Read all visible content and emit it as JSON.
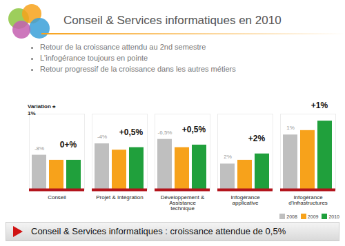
{
  "chart_data": {
    "type": "bar",
    "title": "Conseil & Services informatiques en 2010",
    "bullets": [
      "Retour de la croissance attendu au 2nd semestre",
      "L'infogérance toujours en pointe",
      "Retour progressif de la croissance dans les autres métiers"
    ],
    "y_label": "Variation ± 1%",
    "categories": [
      "Conseil",
      "Projet & Intégration",
      "Développement & Assistance technique",
      "Infogérance applicative",
      "Infogérance d'infrastructures"
    ],
    "series": [
      {
        "name": "2008",
        "color": "#bfbfbf",
        "values": [
          55,
          73,
          80,
          41,
          87
        ]
      },
      {
        "name": "2009",
        "color": "#f7a21b",
        "values": [
          47,
          63,
          67,
          47,
          94
        ]
      },
      {
        "name": "2010",
        "color": "#20a03c",
        "values": [
          47,
          67,
          71,
          57,
          109
        ]
      }
    ],
    "change_labels": [
      "-8%",
      "-4%",
      "-6,5%",
      "2%",
      "1%"
    ],
    "growth_labels": [
      "0+%",
      "+0,5%",
      "+0,5%",
      "+2%",
      "+1%"
    ],
    "footer": "Conseil & Services informatiques : croissance attendue de 0,5%",
    "ylim": [
      0,
      120
    ],
    "yticks": [],
    "grid": false,
    "tick_labels": "x",
    "legend": "bottom-right"
  }
}
